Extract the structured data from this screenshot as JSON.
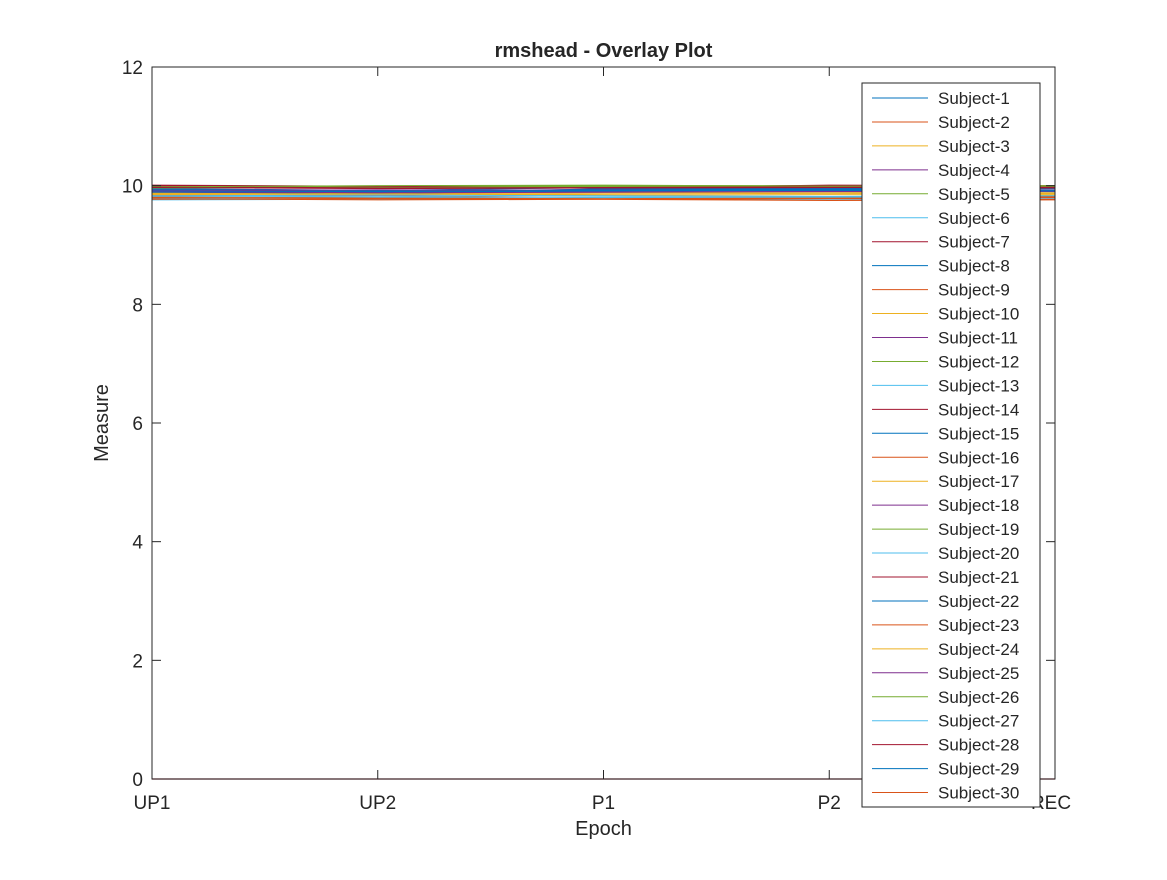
{
  "chart_data": {
    "type": "line",
    "title": "rmshead - Overlay Plot",
    "xlabel": "Epoch",
    "ylabel": "Measure",
    "categories": [
      "UP1",
      "UP2",
      "P1",
      "P2",
      "REC"
    ],
    "ylim": [
      0,
      12
    ],
    "yticks": [
      0,
      2,
      4,
      6,
      8,
      10,
      12
    ],
    "grid": false,
    "legend_position": "right",
    "series_colors": [
      "#0072BD",
      "#D95319",
      "#EDB120",
      "#7E2F8E",
      "#77AC30",
      "#4DBEEE",
      "#A2142F"
    ],
    "series": [
      {
        "name": "Subject-1",
        "values": [
          9.95,
          9.92,
          9.97,
          9.99,
          9.96
        ]
      },
      {
        "name": "Subject-2",
        "values": [
          9.82,
          9.8,
          9.78,
          9.79,
          9.81
        ]
      },
      {
        "name": "Subject-3",
        "values": [
          9.88,
          9.87,
          9.89,
          9.9,
          9.88
        ]
      },
      {
        "name": "Subject-4",
        "values": [
          9.93,
          9.9,
          9.94,
          9.95,
          9.93
        ]
      },
      {
        "name": "Subject-5",
        "values": [
          9.98,
          9.99,
          10.0,
          10.0,
          9.99
        ]
      },
      {
        "name": "Subject-6",
        "values": [
          9.76,
          9.77,
          9.78,
          9.76,
          9.77
        ]
      },
      {
        "name": "Subject-7",
        "values": [
          10.0,
          9.97,
          9.98,
          10.0,
          9.99
        ]
      },
      {
        "name": "Subject-8",
        "values": [
          9.9,
          9.85,
          9.95,
          9.96,
          9.92
        ]
      },
      {
        "name": "Subject-9",
        "values": [
          9.84,
          9.83,
          9.8,
          9.81,
          9.82
        ]
      },
      {
        "name": "Subject-10",
        "values": [
          9.87,
          9.86,
          9.88,
          9.89,
          9.87
        ]
      },
      {
        "name": "Subject-11",
        "values": [
          9.91,
          9.89,
          9.9,
          9.93,
          9.91
        ]
      },
      {
        "name": "Subject-12",
        "values": [
          9.97,
          9.98,
          9.99,
          9.98,
          9.97
        ]
      },
      {
        "name": "Subject-13",
        "values": [
          9.79,
          9.8,
          9.81,
          9.8,
          9.79
        ]
      },
      {
        "name": "Subject-14",
        "values": [
          10.01,
          9.99,
          9.96,
          10.01,
          10.0
        ]
      },
      {
        "name": "Subject-15",
        "values": [
          9.94,
          9.91,
          9.93,
          9.94,
          9.95
        ]
      },
      {
        "name": "Subject-16",
        "values": [
          9.78,
          9.76,
          9.77,
          9.75,
          9.76
        ]
      },
      {
        "name": "Subject-17",
        "values": [
          9.86,
          9.85,
          9.86,
          9.87,
          9.86
        ]
      },
      {
        "name": "Subject-18",
        "values": [
          9.92,
          9.93,
          9.92,
          9.91,
          9.92
        ]
      },
      {
        "name": "Subject-19",
        "values": [
          9.96,
          9.97,
          9.98,
          9.99,
          9.98
        ]
      },
      {
        "name": "Subject-20",
        "values": [
          9.81,
          9.82,
          9.8,
          9.81,
          9.8
        ]
      },
      {
        "name": "Subject-21",
        "values": [
          9.99,
          9.96,
          9.97,
          9.98,
          9.97
        ]
      },
      {
        "name": "Subject-22",
        "values": [
          9.89,
          9.88,
          9.91,
          9.92,
          9.9
        ]
      },
      {
        "name": "Subject-23",
        "values": [
          9.77,
          9.78,
          9.77,
          9.78,
          9.77
        ]
      },
      {
        "name": "Subject-24",
        "values": [
          9.85,
          9.86,
          9.84,
          9.85,
          9.84
        ]
      },
      {
        "name": "Subject-25",
        "values": [
          9.9,
          9.88,
          9.89,
          9.9,
          9.91
        ]
      },
      {
        "name": "Subject-26",
        "values": [
          9.98,
          10.0,
          10.01,
          9.99,
          10.0
        ]
      },
      {
        "name": "Subject-27",
        "values": [
          9.83,
          9.84,
          9.83,
          9.82,
          9.83
        ]
      },
      {
        "name": "Subject-28",
        "values": [
          9.97,
          9.95,
          9.96,
          9.97,
          9.96
        ]
      },
      {
        "name": "Subject-29",
        "values": [
          9.91,
          9.9,
          9.92,
          9.93,
          9.92
        ]
      },
      {
        "name": "Subject-30",
        "values": [
          9.8,
          9.79,
          9.78,
          9.79,
          9.8
        ]
      }
    ]
  }
}
